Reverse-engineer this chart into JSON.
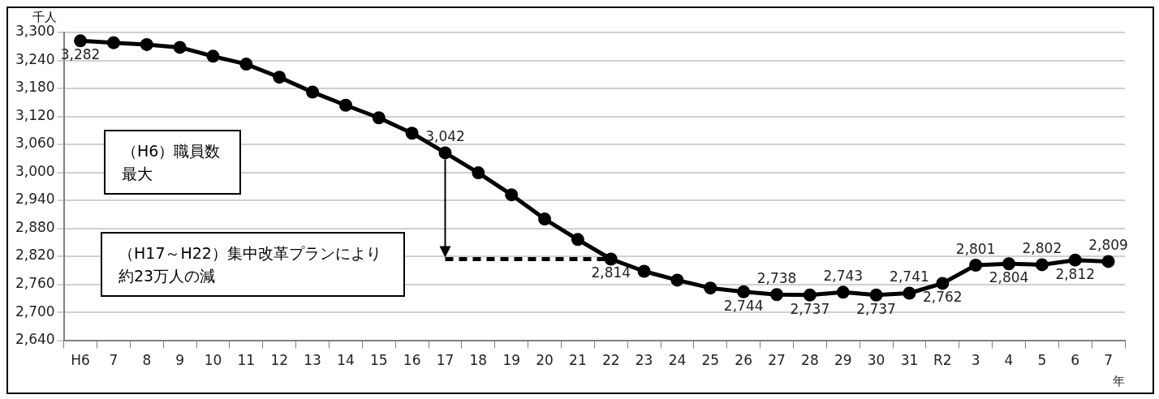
{
  "chart_data": {
    "type": "line",
    "ylabel": "千人",
    "xlabel": "年",
    "categories": [
      "H6",
      "7",
      "8",
      "9",
      "10",
      "11",
      "12",
      "13",
      "14",
      "15",
      "16",
      "17",
      "18",
      "19",
      "20",
      "21",
      "22",
      "23",
      "24",
      "25",
      "26",
      "27",
      "28",
      "29",
      "30",
      "31",
      "R2",
      "3",
      "4",
      "5",
      "6",
      "7"
    ],
    "series": [
      {
        "color": "#000000",
        "marker": "circle",
        "line_style": "solid",
        "values": [
          3282,
          3278,
          3274,
          3268,
          3249,
          3232,
          3204,
          3172,
          3144,
          3117,
          3084,
          3042,
          2999,
          2952,
          2900,
          2856,
          2814,
          2788,
          2769,
          2752,
          2744,
          2738,
          2737,
          2743,
          2737,
          2741,
          2762,
          2801,
          2804,
          2802,
          2812,
          2809
        ],
        "value_labels": [
          "3,282",
          null,
          null,
          null,
          null,
          null,
          null,
          null,
          null,
          null,
          null,
          "3,042",
          null,
          null,
          null,
          null,
          "2,814",
          null,
          null,
          null,
          "2,744",
          "2,738",
          "2,737",
          "2,743",
          "2,737",
          "2,741",
          "2,762",
          "2,801",
          "2,804",
          "2,802",
          "2,812",
          "2,809"
        ]
      },
      {
        "type": "line",
        "color": "#000000",
        "marker": "none",
        "line_style": "dashed",
        "values": [
          null,
          null,
          null,
          null,
          null,
          null,
          null,
          null,
          null,
          null,
          null,
          2814,
          2814,
          2814,
          2814,
          2814,
          2814,
          null,
          null,
          null,
          null,
          null,
          null,
          null,
          null,
          null,
          null,
          null,
          null,
          null,
          null,
          null
        ]
      }
    ],
    "ylim": [
      2640,
      3300
    ],
    "yticks": [
      {
        "value": 2640,
        "label": "2,640"
      },
      {
        "value": 2700,
        "label": "2,700"
      },
      {
        "value": 2760,
        "label": "2,760"
      },
      {
        "value": 2820,
        "label": "2,820"
      },
      {
        "value": 2880,
        "label": "2,880"
      },
      {
        "value": 2940,
        "label": "2,940"
      },
      {
        "value": 3000,
        "label": "3,000"
      },
      {
        "value": 3060,
        "label": "3,060"
      },
      {
        "value": 3120,
        "label": "3,120"
      },
      {
        "value": 3180,
        "label": "3,180"
      },
      {
        "value": 3240,
        "label": "3,240"
      },
      {
        "value": 3300,
        "label": "3,300"
      }
    ],
    "grid": "y",
    "legend": false,
    "annotations": [
      "（H6）職員数最大",
      "（H17～H22）集中改革プランにより約23万人の減"
    ]
  }
}
